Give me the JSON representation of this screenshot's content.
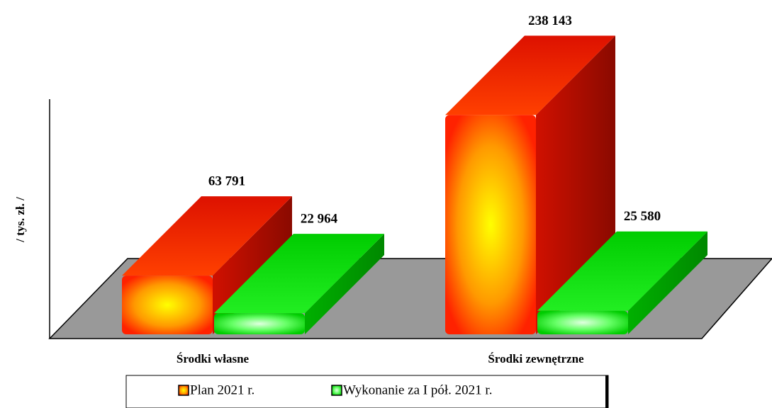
{
  "chart_data": {
    "type": "bar3d",
    "y_label": "/ tys. zł. /",
    "categories": [
      "Środki własne",
      "Środki zewnętrzne"
    ],
    "series": [
      {
        "name": "Plan 2021 r.",
        "color": "#ff2000",
        "values": [
          63791,
          238143
        ],
        "value_labels": [
          "63 791",
          "238 143"
        ]
      },
      {
        "name": "Wykonanie za I pół. 2021 r.",
        "color": "#00dd00",
        "values": [
          22964,
          25580
        ],
        "value_labels": [
          "22 964",
          "25 580"
        ]
      }
    ],
    "ylim": [
      0,
      260000
    ]
  }
}
